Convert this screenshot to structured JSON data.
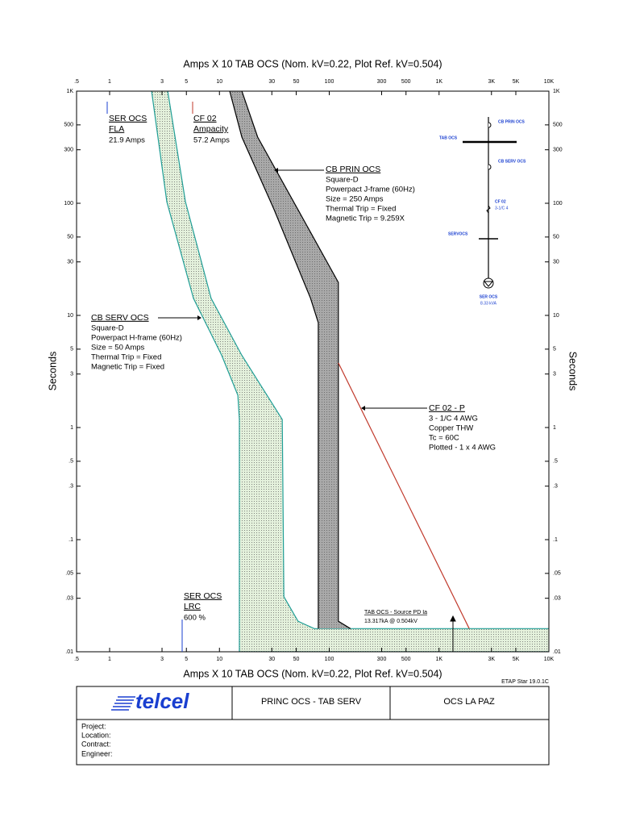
{
  "chart_data": {
    "type": "tcc",
    "xlabel": "Amps  X  10   TAB OCS (Nom. kV=0.22, Plot Ref. kV=0.504)",
    "ylabel": "Seconds",
    "log_x": true,
    "log_y": true,
    "xlim": [
      0.5,
      10000
    ],
    "ylim": [
      0.01,
      1000
    ],
    "xticks": [
      {
        "value": 0.5,
        "label": ".5"
      },
      1,
      3,
      5,
      10,
      30,
      50,
      100,
      300,
      500,
      {
        "value": 1000,
        "label": "1K"
      },
      {
        "value": 3000,
        "label": "3K"
      },
      {
        "value": 5000,
        "label": "5K"
      },
      {
        "value": 10000,
        "label": "10K"
      }
    ],
    "yticks": [
      {
        "value": 0.01,
        "label": ".01"
      },
      {
        "value": 0.03,
        "label": ".03"
      },
      {
        "value": 0.05,
        "label": ".05"
      },
      {
        "value": 0.1,
        "label": ".1"
      },
      {
        "value": 0.3,
        "label": ".3"
      },
      {
        "value": 0.5,
        "label": ".5"
      },
      1,
      3,
      5,
      10,
      30,
      50,
      100,
      300,
      500,
      {
        "value": 1000,
        "label": "1K"
      }
    ],
    "bands": [
      {
        "name": "CB SERV OCS",
        "color": "#1f9e96",
        "fill": "#e4f1dc",
        "details": [
          "Square-D",
          "Powerpact H-frame (60Hz)",
          "Size = 50 Amps",
          "Thermal Trip = Fixed",
          "Magnetic Trip = Fixed"
        ],
        "lower": {
          "x": [
            2.41,
            3.32,
            5.8,
            10.5,
            14.7,
            15.2,
            15.2,
            10000
          ],
          "y": [
            1000,
            103,
            14.2,
            4.4,
            1.94,
            1.18,
            0.01,
            0.01
          ]
        },
        "upper": {
          "x": [
            3.38,
            4.9,
            8.4,
            16.0,
            37.3,
            38.6,
            52,
            73,
            10000
          ],
          "y": [
            1000,
            103,
            14.2,
            4.4,
            1.18,
            0.031,
            0.0187,
            0.0161,
            0.0161
          ]
        }
      },
      {
        "name": "CB PRIN OCS",
        "color": "#000000",
        "fill": "#a9a9a9",
        "details": [
          "Square-D",
          "Powerpact J-frame (60Hz)",
          "Size = 250 Amps",
          "Thermal Trip = Fixed",
          "Magnetic Trip = 9.259X"
        ],
        "lower": {
          "x": [
            12.4,
            16.0,
            31.5,
            67.6,
            79.4,
            79.4
          ],
          "y": [
            1000,
            389,
            87.5,
            14.2,
            8.6,
            0.0161
          ]
        },
        "upper": {
          "x": [
            16.0,
            22.3,
            52,
            121,
            121,
            156
          ],
          "y": [
            1000,
            389,
            87.5,
            19.7,
            0.0187,
            0.0161
          ]
        }
      }
    ],
    "lines": [
      {
        "name": "CF 02 - P",
        "color": "#c0392b",
        "details": [
          "3 - 1/C 4 AWG",
          "Copper  THW",
          "Tc = 60C",
          "Plotted - 1 x 4 AWG"
        ],
        "x": [
          121,
          1883
        ],
        "y": [
          3.77,
          0.0161
        ]
      }
    ],
    "labels": [
      {
        "title": "SER OCS",
        "subtitle": "FLA",
        "text": "21.9 Amps",
        "color": "#1a3fd0"
      },
      {
        "title": "CF 02",
        "subtitle": "Ampacity",
        "text": "57.2 Amps",
        "color": "#c0392b"
      },
      {
        "title": "SER OCS",
        "subtitle": "LRC",
        "text": "600 %",
        "color": "#1a3fd0"
      }
    ],
    "fault": {
      "title": "TAB OCS - Source PD Ia",
      "text": "13.317kA @ 0.504kV"
    },
    "one_line": {
      "labels": [
        "CB PRIN OCS",
        "TAB OCS",
        "CB SERV OCS",
        "CF 02",
        "3-1/C 4",
        "SERVOCS",
        "SER OCS",
        "8.33 kVA"
      ]
    },
    "software": "ETAP Star 19.0.1C"
  },
  "title_block": {
    "logo": "telcel",
    "drawing": "PRINC OCS - TAB SERV",
    "site": "OCS LA PAZ",
    "fields": [
      "Project:",
      "Location:",
      "Contract:",
      "Engineer:"
    ]
  }
}
